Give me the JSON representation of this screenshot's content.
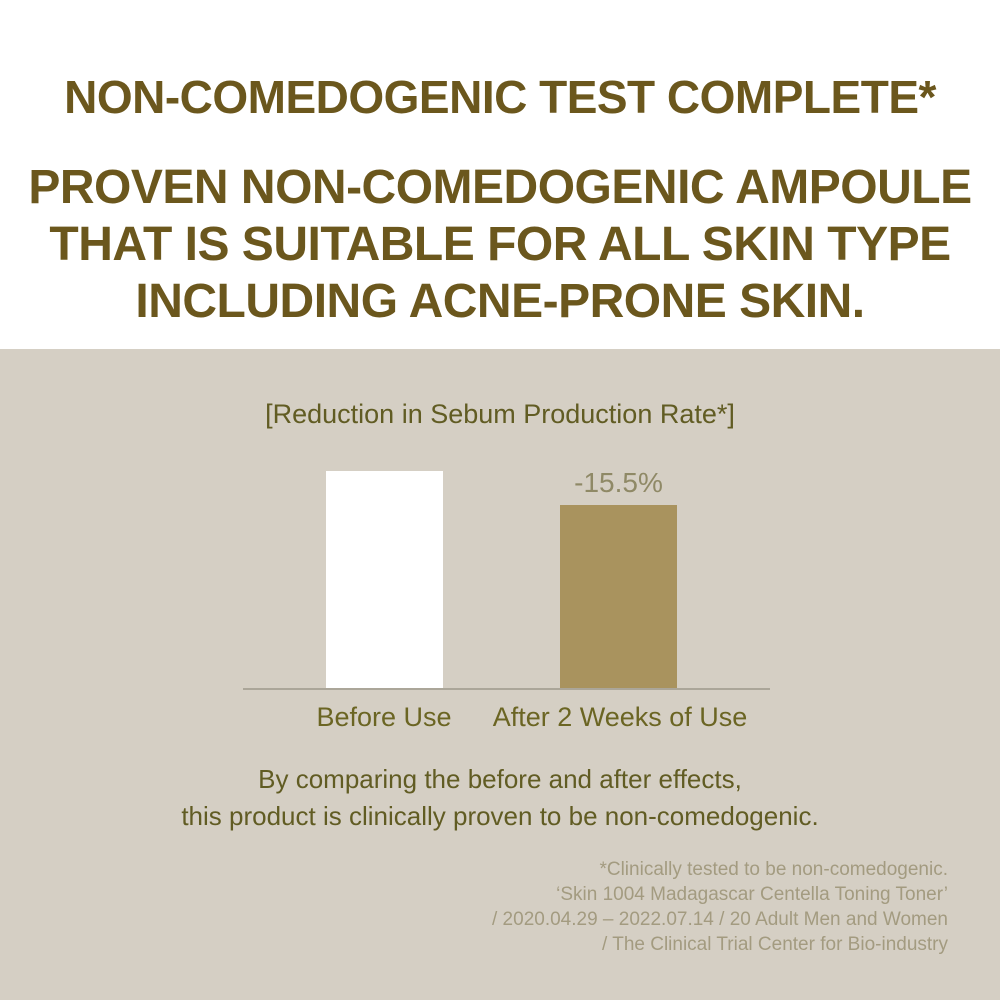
{
  "top": {
    "headline1": "NON-COMEDOGENIC TEST COMPLETE*",
    "headline2_lines": [
      "PROVEN NON-COMEDOGENIC AMPOULE",
      "THAT IS SUITABLE FOR ALL SKIN TYPE",
      "INCLUDING ACNE-PRONE SKIN."
    ]
  },
  "chart_data": {
    "type": "bar",
    "title": "[Reduction in Sebum Production Rate*]",
    "categories": [
      "Before Use",
      "After 2 Weeks of Use"
    ],
    "values": [
      100,
      84.5
    ],
    "data_labels": [
      "",
      "-15.5%"
    ],
    "bar_colors": [
      "#ffffff",
      "#a9935e"
    ],
    "ylim": [
      0,
      100
    ],
    "grid": false,
    "legend": false,
    "xlabel": "",
    "ylabel": ""
  },
  "body": {
    "line1": "By comparing the before and after effects,",
    "line2": "this product is clinically proven to be non-comedogenic."
  },
  "footnote": {
    "lines": [
      "*Clinically tested to be non-comedogenic.",
      "‘Skin 1004 Madagascar Centella Toning Toner’",
      "/ 2020.04.29 – 2022.07.14 / 20 Adult Men and Women",
      "/ The Clinical Trial Center for Bio-industry"
    ]
  },
  "colors": {
    "background_top": "#ffffff",
    "background_bottom": "#d5cfc4",
    "headline": "#6b571d",
    "body_text": "#615c23",
    "axis_label": "#6b6523",
    "data_label": "#8f8966",
    "bar_before": "#ffffff",
    "bar_after": "#a9935e",
    "footnote": "#a39b80",
    "axis_line": "#aba699"
  }
}
